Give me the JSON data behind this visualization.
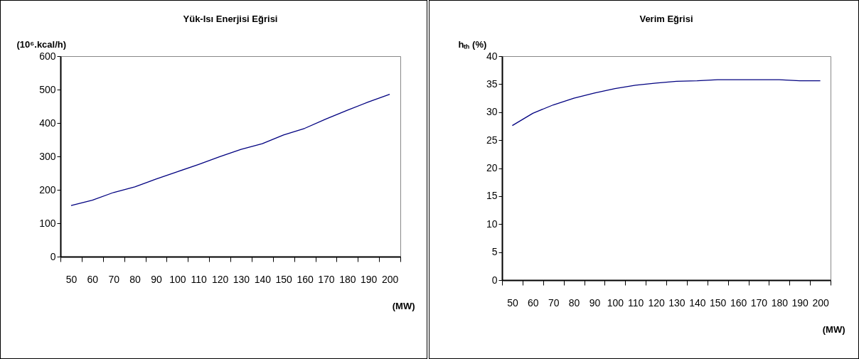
{
  "chart_data": [
    {
      "type": "line",
      "title": "Yük-Isı Enerjisi  Eğrisi",
      "ylabel": "(10⁶.kcal/h)",
      "xlabel": "(MW)",
      "categories": [
        "50",
        "60",
        "70",
        "80",
        "90",
        "100",
        "110",
        "120",
        "130",
        "140",
        "150",
        "160",
        "170",
        "180",
        "190",
        "200"
      ],
      "series": [
        {
          "color": "#000080",
          "values": [
            153,
            169,
            192,
            209,
            232,
            254,
            276,
            299,
            321,
            338,
            364,
            384,
            412,
            438,
            463,
            486
          ]
        }
      ],
      "ylim": [
        0,
        600
      ],
      "yticks": [
        0,
        100,
        200,
        300,
        400,
        500,
        600
      ],
      "grid": false
    },
    {
      "type": "line",
      "title": "Verim Eğrisi",
      "ylabel": "hₜₕ (%)",
      "xlabel": "(MW)",
      "categories": [
        "50",
        "60",
        "70",
        "80",
        "90",
        "100",
        "110",
        "120",
        "130",
        "140",
        "150",
        "160",
        "170",
        "180",
        "190",
        "200"
      ],
      "series": [
        {
          "color": "#000080",
          "values": [
            27.6,
            29.8,
            31.3,
            32.5,
            33.4,
            34.2,
            34.8,
            35.2,
            35.5,
            35.6,
            35.8,
            35.8,
            35.8,
            35.8,
            35.6,
            35.6
          ]
        }
      ],
      "ylim": [
        0,
        40
      ],
      "yticks": [
        0,
        5,
        10,
        15,
        20,
        25,
        30,
        35,
        40
      ],
      "grid": false
    }
  ]
}
